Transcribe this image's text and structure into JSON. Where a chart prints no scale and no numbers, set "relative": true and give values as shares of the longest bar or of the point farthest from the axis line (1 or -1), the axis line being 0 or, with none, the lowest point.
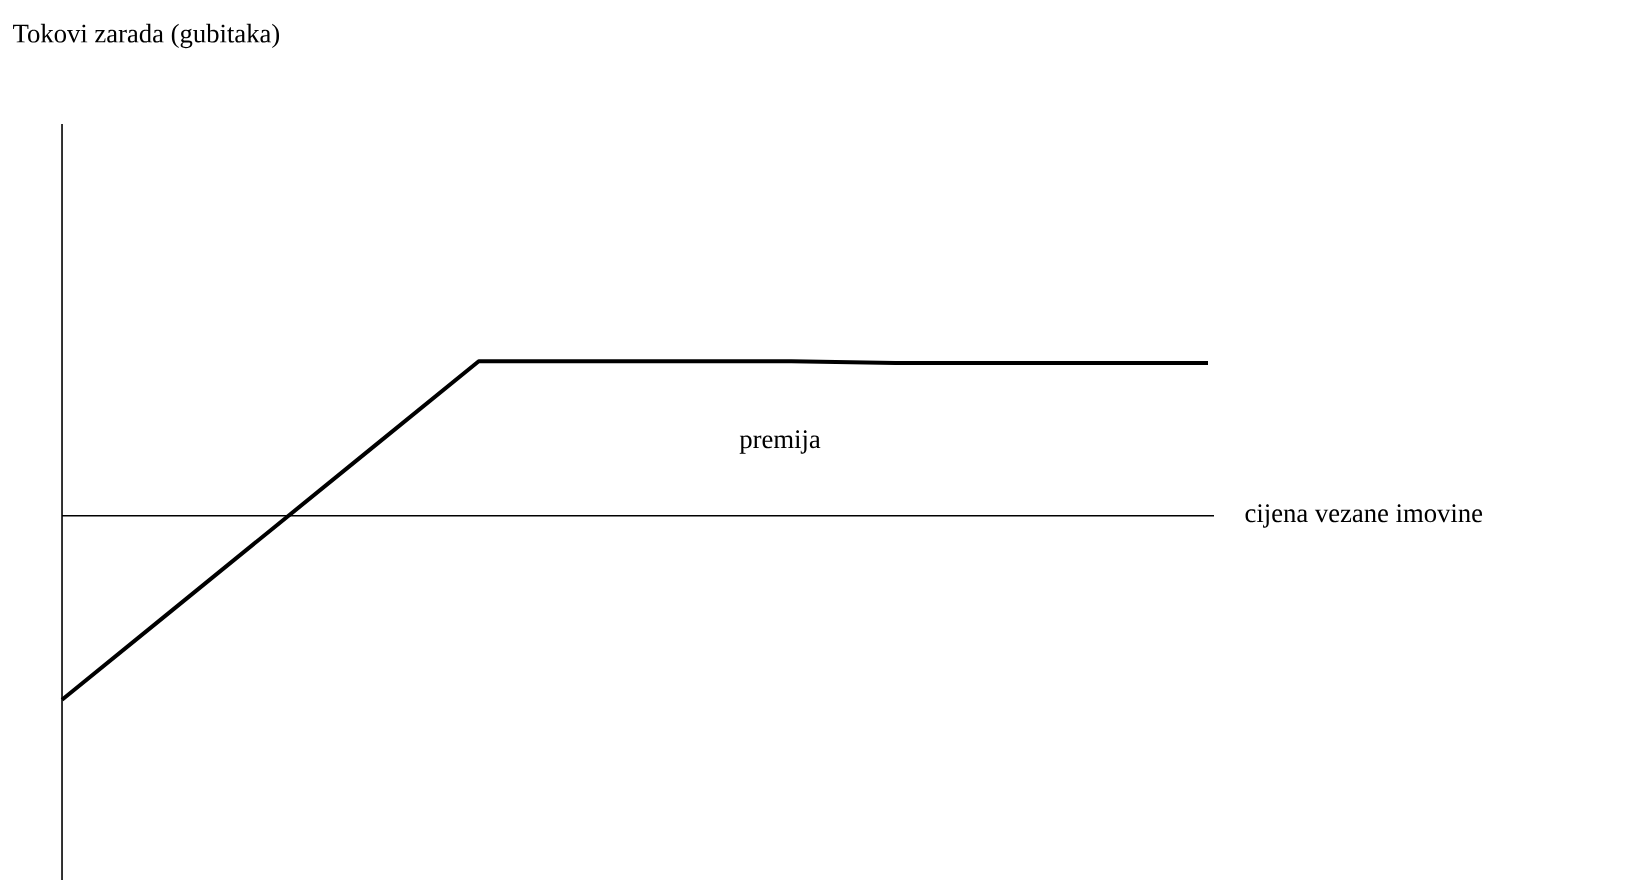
{
  "chart_data": {
    "type": "line",
    "relative": true,
    "xlabel": "cijena vezane imovine",
    "annotations": [
      "Tokovi zarada (gubitaka)",
      "premija"
    ],
    "categories": [
      null,
      null,
      null,
      null,
      null,
      null,
      null,
      null,
      null,
      null,
      null,
      null
    ],
    "series": [
      {
        "color": "#000000",
        "values": [
          -1,
          -0.54,
          -0.08,
          0.38,
          0.84,
          0.84,
          0.84,
          0.84,
          0.83,
          0.83,
          0.83,
          0.83
        ]
      }
    ]
  }
}
